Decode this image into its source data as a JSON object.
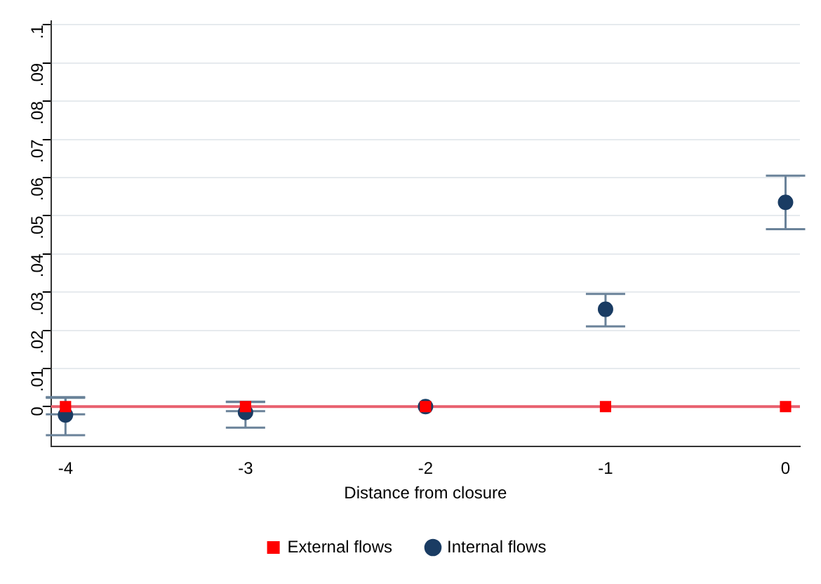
{
  "chart_data": {
    "type": "scatter",
    "xlabel": "Distance from closure",
    "x": [
      -4,
      -3,
      -2,
      -1,
      0
    ],
    "series": [
      {
        "name": "External flows",
        "color": "#ff0000",
        "marker": "square",
        "values": [
          0,
          0,
          0,
          0,
          0
        ],
        "errors": [
          [
            -0.002,
            0.0023
          ],
          [
            -0.0012,
            0.0013
          ],
          null,
          null,
          null
        ]
      },
      {
        "name": "Internal flows",
        "color": "#1a3c63",
        "marker": "circle",
        "values": [
          -0.0022,
          -0.0015,
          0,
          0.0255,
          0.0535
        ],
        "errors": [
          [
            -0.0075,
            0.0025
          ],
          [
            -0.0055,
            0.0012
          ],
          null,
          [
            0.021,
            0.0295
          ],
          [
            0.0465,
            0.0605
          ]
        ]
      }
    ],
    "xlim": [
      -4.08,
      0.08
    ],
    "xticks": [
      -4,
      -3,
      -2,
      -1,
      0
    ],
    "ylim": [
      -0.0105,
      0.101
    ],
    "yticks": [
      0,
      {
        "value": 0.01,
        "label": ".01"
      },
      {
        "value": 0.02,
        "label": ".02"
      },
      {
        "value": 0.03,
        "label": ".03"
      },
      {
        "value": 0.04,
        "label": ".04"
      },
      {
        "value": 0.05,
        "label": ".05"
      },
      {
        "value": 0.06,
        "label": ".06"
      },
      {
        "value": 0.07,
        "label": ".07"
      },
      {
        "value": 0.08,
        "label": ".08"
      },
      {
        "value": 0.09,
        "label": ".09"
      },
      {
        "value": 0.1,
        "label": ".1"
      }
    ],
    "ref_lines": [
      {
        "axis": "y",
        "value": 0,
        "color": "#e8606e"
      }
    ],
    "grid": "y",
    "legend": "bottom"
  }
}
